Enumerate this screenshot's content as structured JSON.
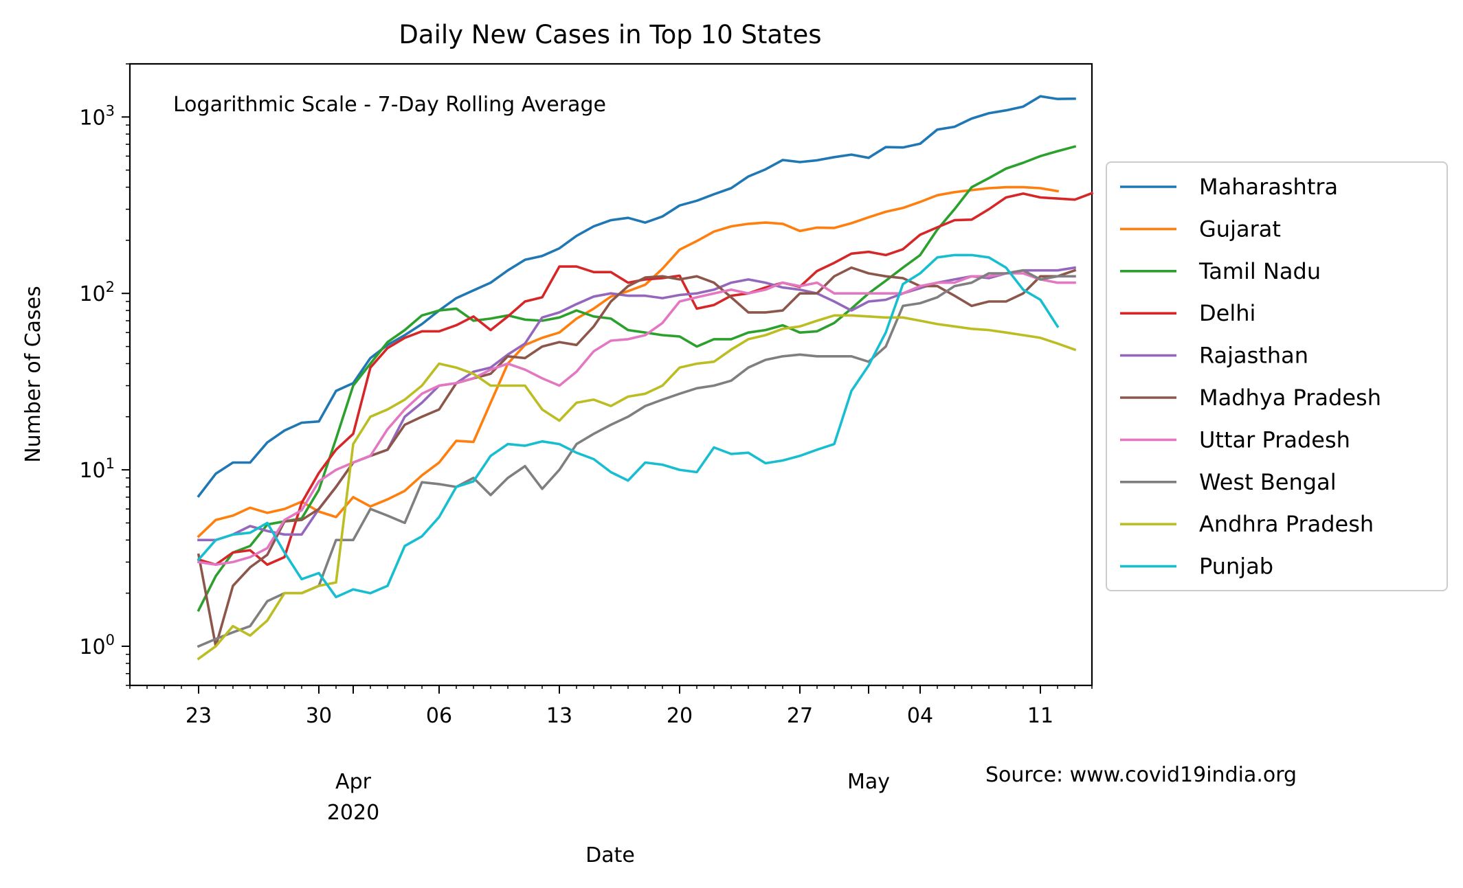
{
  "chart_data": {
    "type": "line",
    "title": "Daily New Cases in Top 10 States",
    "subtitle": "Logarithmic Scale - 7-Day Rolling Average",
    "xlabel": "Date",
    "ylabel": "Number of Cases",
    "source": "Source: www.covid19india.org",
    "y_scale": "log",
    "ylim": [
      0.6,
      2000
    ],
    "xlim": [
      "2020-03-19",
      "2020-05-14"
    ],
    "grid": false,
    "legend_position": "outside-right",
    "x_major_ticks": [
      {
        "date": "2020-03-23",
        "label": "23"
      },
      {
        "date": "2020-03-30",
        "label": "30"
      },
      {
        "date": "2020-04-06",
        "label": "06"
      },
      {
        "date": "2020-04-13",
        "label": "13"
      },
      {
        "date": "2020-04-20",
        "label": "20"
      },
      {
        "date": "2020-04-27",
        "label": "27"
      },
      {
        "date": "2020-05-04",
        "label": "04"
      },
      {
        "date": "2020-05-11",
        "label": "11"
      }
    ],
    "x_month_ticks": [
      {
        "date": "2020-04-01",
        "label": "Apr",
        "sublabel": "2020"
      },
      {
        "date": "2020-05-01",
        "label": "May",
        "sublabel": ""
      }
    ],
    "y_ticks": [
      {
        "value": 1,
        "base": "10",
        "exp": "0"
      },
      {
        "value": 10,
        "base": "10",
        "exp": "1"
      },
      {
        "value": 100,
        "base": "10",
        "exp": "2"
      },
      {
        "value": 1000,
        "base": "10",
        "exp": "3"
      }
    ],
    "x_start_date": "2020-03-23",
    "series": [
      {
        "name": "Maharashtra",
        "color": "#1f77b4",
        "values": [
          7.1,
          9.5,
          11,
          11,
          14.3,
          16.7,
          18.5,
          18.8,
          28,
          31,
          43,
          51,
          58,
          67,
          80,
          94,
          104,
          115,
          135,
          155,
          163,
          180,
          212,
          240,
          260,
          268,
          252,
          273,
          315,
          335,
          365,
          395,
          460,
          505,
          570,
          555,
          568,
          592,
          612,
          587,
          675,
          672,
          705,
          848,
          880,
          980,
          1050,
          1090,
          1145,
          1310,
          1265,
          1270
        ]
      },
      {
        "name": "Gujarat",
        "color": "#ff7f0e",
        "values": [
          4.2,
          5.2,
          5.5,
          6.1,
          5.7,
          6,
          6.6,
          5.8,
          5.4,
          7,
          6.2,
          6.8,
          7.6,
          9.3,
          11,
          14.6,
          14.4,
          24,
          40,
          51,
          56,
          60,
          72,
          82,
          96,
          103,
          112,
          138,
          177,
          198,
          224,
          240,
          248,
          252,
          248,
          226,
          236,
          235,
          250,
          270,
          290,
          305,
          330,
          360,
          375,
          385,
          395,
          400,
          400,
          395,
          380
        ]
      },
      {
        "name": "Tamil Nadu",
        "color": "#2ca02c",
        "values": [
          1.6,
          2.5,
          3.4,
          3.7,
          4.9,
          5.1,
          5.3,
          7.7,
          15,
          30,
          40,
          53,
          62,
          75,
          80,
          82,
          70,
          72,
          75,
          71,
          70,
          73,
          80,
          74,
          72,
          62,
          60,
          58,
          57,
          50,
          55,
          55,
          60,
          62,
          66,
          60,
          61,
          68,
          82,
          100,
          118,
          140,
          165,
          230,
          300,
          400,
          450,
          510,
          550,
          600,
          640,
          680
        ]
      },
      {
        "name": "Delhi",
        "color": "#d62728",
        "values": [
          3.1,
          2.9,
          3.4,
          3.5,
          2.9,
          3.2,
          6.5,
          9.6,
          13,
          16,
          38,
          49,
          56,
          61,
          61,
          66,
          74,
          62,
          74,
          90,
          95,
          142,
          142,
          132,
          132,
          115,
          120,
          122,
          126,
          82,
          86,
          97,
          100,
          108,
          115,
          109,
          134,
          149,
          168,
          172,
          165,
          178,
          215,
          237,
          260,
          262,
          300,
          350,
          368,
          350,
          345,
          340,
          370
        ]
      },
      {
        "name": "Rajasthan",
        "color": "#9467bd",
        "values": [
          4,
          4,
          4.3,
          4.8,
          4.5,
          4.3,
          4.3,
          6,
          8,
          11,
          12,
          13,
          20,
          24,
          30,
          31,
          36,
          38,
          45,
          52,
          73,
          78,
          87,
          96,
          100,
          97,
          97,
          94,
          98,
          100,
          105,
          115,
          120,
          115,
          108,
          105,
          100,
          90,
          80,
          90,
          92,
          100,
          107,
          115,
          120,
          125,
          122,
          130,
          135,
          135,
          135,
          140
        ]
      },
      {
        "name": "Madhya Pradesh",
        "color": "#8c564b",
        "values": [
          3.3,
          1,
          2.2,
          2.8,
          3.3,
          5.1,
          5.2,
          6,
          8,
          11,
          12,
          13,
          18,
          20,
          22,
          31,
          33,
          35,
          44,
          43,
          50,
          53,
          51,
          65,
          90,
          110,
          123,
          125,
          120,
          125,
          115,
          95,
          78,
          78,
          80,
          100,
          100,
          125,
          140,
          130,
          125,
          122,
          110,
          110,
          97,
          85,
          90,
          90,
          100,
          125,
          125,
          135
        ]
      },
      {
        "name": "Uttar Pradesh",
        "color": "#e377c2",
        "values": [
          3,
          2.9,
          3,
          3.2,
          3.6,
          5.2,
          5.9,
          8.6,
          10,
          11,
          12,
          17,
          22,
          27,
          30,
          31,
          33,
          37,
          40,
          37,
          33,
          30,
          36,
          47,
          54,
          55,
          58,
          68,
          90,
          95,
          100,
          105,
          100,
          105,
          115,
          110,
          115,
          100,
          100,
          100,
          100,
          100,
          110,
          115,
          115,
          125,
          125,
          130,
          130,
          120,
          115,
          115
        ]
      },
      {
        "name": "West Bengal",
        "color": "#7f7f7f",
        "values": [
          1,
          1.1,
          1.2,
          1.3,
          1.8,
          2,
          2,
          2.2,
          4,
          4,
          6,
          5.5,
          5,
          8.5,
          8.3,
          8,
          9,
          7.2,
          9,
          10.5,
          7.8,
          10,
          14,
          16,
          18,
          20,
          23,
          25,
          27,
          29,
          30,
          32,
          38,
          42,
          44,
          45,
          44,
          44,
          44,
          41,
          50,
          85,
          88,
          95,
          110,
          115,
          130,
          130,
          135,
          120,
          125,
          125
        ]
      },
      {
        "name": "Andhra Pradesh",
        "color": "#bcbd22",
        "values": [
          0.85,
          1,
          1.3,
          1.15,
          1.4,
          2,
          2,
          2.2,
          2.3,
          14,
          20,
          22,
          25,
          30,
          40,
          38,
          35,
          30,
          30,
          30,
          22,
          19,
          24,
          25,
          23,
          26,
          27,
          30,
          38,
          40,
          41,
          48,
          55,
          58,
          63,
          65,
          70,
          75,
          75,
          74,
          73,
          73,
          70,
          67,
          65,
          63,
          62,
          60,
          58,
          56,
          52,
          48
        ]
      },
      {
        "name": "Punjab",
        "color": "#17becf",
        "values": [
          3.1,
          4,
          4.3,
          4.4,
          5,
          3.4,
          2.4,
          2.6,
          1.9,
          2.1,
          2,
          2.2,
          3.7,
          4.2,
          5.4,
          8,
          8.6,
          12,
          14,
          13.7,
          14.5,
          14,
          12.5,
          11.5,
          9.7,
          8.7,
          11,
          10.7,
          10,
          9.7,
          13.4,
          12.3,
          12.5,
          10.9,
          11.3,
          12,
          13,
          14,
          28,
          39,
          60,
          113,
          130,
          160,
          165,
          165,
          160,
          140,
          105,
          92,
          65
        ]
      }
    ]
  }
}
